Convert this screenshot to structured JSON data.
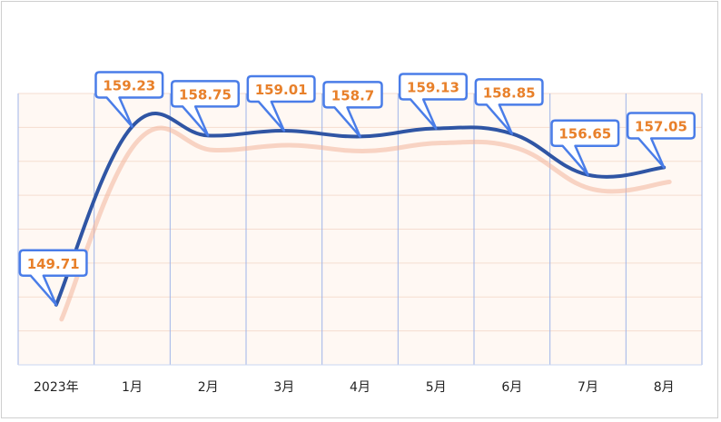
{
  "chart_data": {
    "type": "line",
    "title": "",
    "xlabel": "",
    "ylabel": "",
    "categories": [
      "2023年",
      "1月",
      "2月",
      "3月",
      "4月",
      "5月",
      "6月",
      "7月",
      "8月"
    ],
    "series": [
      {
        "values": [
          149.71,
          159.23,
          158.75,
          159.01,
          158.7,
          159.13,
          158.85,
          156.65,
          157.05
        ]
      }
    ],
    "ylim": [
      146.5,
      161.0
    ],
    "grid": true,
    "legend": "none",
    "colors": {
      "line": "#2f55a4",
      "shadow": "#f3b49a",
      "label_text": "#e8802a",
      "label_border": "#4a7de8",
      "plot_bg": "#fff8f3",
      "hgrid": "#f5ddd0",
      "vgrid": "#9fb4e8",
      "axis": "#c9d6f2"
    }
  }
}
